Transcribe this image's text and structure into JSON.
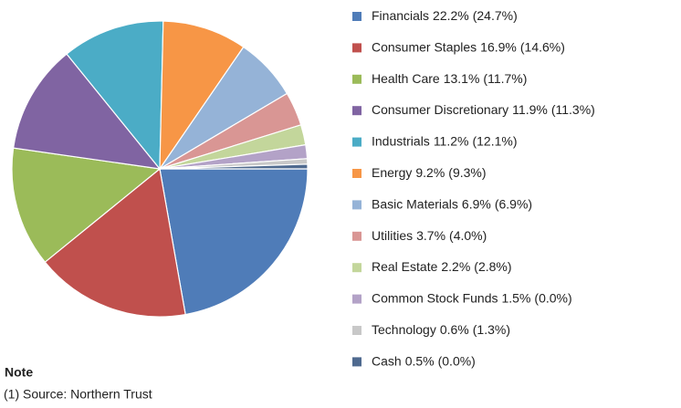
{
  "chart_data": {
    "type": "pie",
    "categories": [
      "Financials",
      "Consumer Staples",
      "Health Care",
      "Consumer Discretionary",
      "Industrials",
      "Energy",
      "Basic Materials",
      "Utilities",
      "Real Estate",
      "Common Stock Funds",
      "Technology",
      "Cash"
    ],
    "values": [
      22.2,
      16.9,
      13.1,
      11.9,
      11.2,
      9.2,
      6.9,
      3.7,
      2.2,
      1.5,
      0.6,
      0.5
    ],
    "value_labels": [
      "22.2%",
      "16.9%",
      "13.1%",
      "11.9%",
      "11.2%",
      "9.2%",
      "6.9%",
      "3.7%",
      "2.2%",
      "1.5%",
      "0.6%",
      "0.5%"
    ],
    "benchmark_labels": [
      "(24.7%)",
      "(14.6%)",
      "(11.7%)",
      "(11.3%)",
      "(12.1%)",
      "(9.3%)",
      "(6.9%)",
      "(4.0%)",
      "(2.8%)",
      "(0.0%)",
      "(1.3%)",
      "(0.0%)"
    ],
    "colors": [
      "#4f7cb8",
      "#c0504d",
      "#9bbb59",
      "#8064a2",
      "#4bacc6",
      "#f79646",
      "#95b3d7",
      "#d99694",
      "#c3d69b",
      "#b3a2c7",
      "#c8c8c8",
      "#4f6a8f"
    ],
    "note_title": "Note",
    "note": "(1) Source: Northern Trust"
  }
}
